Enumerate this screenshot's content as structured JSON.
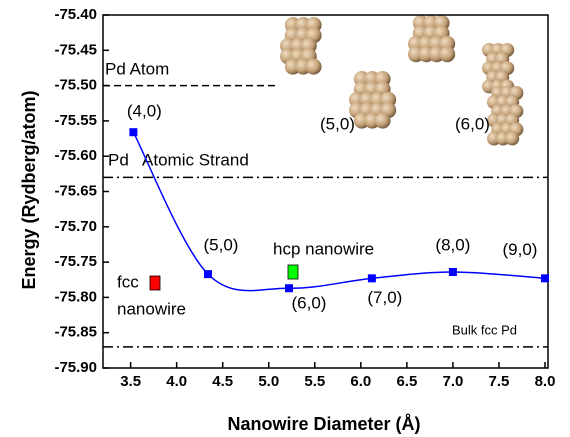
{
  "chart_data": {
    "type": "line",
    "xlabel": "Nanowire Diameter (Å)",
    "ylabel": "Energy (Rydberg/atom)",
    "x": [
      3.53,
      4.34,
      5.22,
      6.12,
      7.0,
      8.0
    ],
    "series": [
      {
        "color": "#0000ff",
        "values": [
          -75.566,
          -75.767,
          -75.787,
          -75.773,
          -75.764,
          -75.773
        ],
        "point_labels": [
          "(4,0)",
          "(5,0)",
          "(6,0)",
          "(7,0)",
          "(8,0)",
          "(9,0)"
        ]
      }
    ],
    "xlim": [
      3.2,
      8.0
    ],
    "xticks": [
      3.5,
      {
        "value": 4,
        "label": "4.0"
      },
      4.5,
      {
        "value": 5,
        "label": "5.0"
      },
      5.5,
      {
        "value": 6,
        "label": "6.0"
      },
      6.5,
      {
        "value": 7,
        "label": "7.0"
      },
      7.5,
      {
        "value": 8,
        "label": "8.0"
      }
    ],
    "ylim": [
      -75.9,
      -75.4
    ],
    "yticks": [
      {
        "value": -75.9,
        "label": "-75.90"
      },
      -75.85,
      {
        "value": -75.8,
        "label": "-75.80"
      },
      -75.75,
      {
        "value": -75.7,
        "label": "-75.70"
      },
      -75.65,
      {
        "value": -75.6,
        "label": "-75.60"
      },
      -75.55,
      {
        "value": -75.5,
        "label": "-75.50"
      },
      -75.45,
      {
        "value": -75.4,
        "label": "-75.40"
      }
    ],
    "reference_lines": [
      {
        "label": "Pd Atom",
        "value": -75.5,
        "style": "dashed"
      },
      {
        "label": "Pd   Atomic Strand",
        "value": -75.63,
        "style": "dashdot"
      },
      {
        "label": "Bulk fcc Pd",
        "value": -75.87,
        "style": "dashdot"
      }
    ],
    "annotations": [
      {
        "lines": [
          "fcc",
          "nanowire"
        ],
        "color": "#ff0000"
      },
      {
        "lines": [
          "hcp nanowire"
        ],
        "color": "#00ff00"
      }
    ],
    "image_labels": [
      "(5,0)",
      "(6,0)"
    ]
  }
}
